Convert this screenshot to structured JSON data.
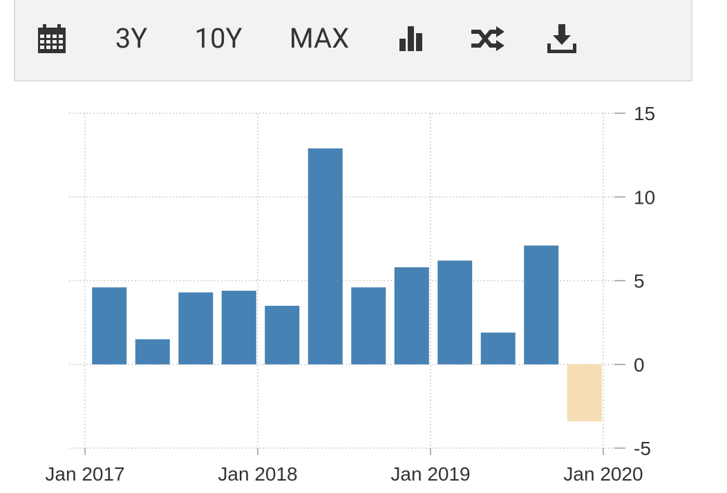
{
  "toolbar": {
    "items": [
      {
        "name": "calendar-icon",
        "label": ""
      },
      {
        "name": "range-3y-button",
        "label": "3Y"
      },
      {
        "name": "range-10y-button",
        "label": "10Y"
      },
      {
        "name": "range-max-button",
        "label": "MAX"
      },
      {
        "name": "bar-chart-icon",
        "label": ""
      },
      {
        "name": "shuffle-icon",
        "label": ""
      },
      {
        "name": "download-icon",
        "label": ""
      }
    ]
  },
  "colors": {
    "positive": "#4682b4",
    "negative": "#f5deb3",
    "grid": "#cccccc"
  },
  "chart_data": {
    "type": "bar",
    "categories": [
      "2017-01",
      "2017-04",
      "2017-07",
      "2017-10",
      "2018-01",
      "2018-04",
      "2018-07",
      "2018-10",
      "2019-01",
      "2019-04",
      "2019-07",
      "2019-10"
    ],
    "values": [
      4.6,
      1.5,
      4.3,
      4.4,
      3.5,
      12.9,
      4.6,
      5.8,
      6.2,
      1.9,
      7.1,
      -3.4
    ],
    "x_tick_labels": [
      "Jan 2017",
      "Jan 2018",
      "Jan 2019",
      "Jan 2020"
    ],
    "y_tick_labels": [
      "15",
      "10",
      "5",
      "0",
      "-5"
    ],
    "ylim": [
      -5,
      15
    ],
    "grid": true,
    "title": "",
    "xlabel": "",
    "ylabel": ""
  }
}
